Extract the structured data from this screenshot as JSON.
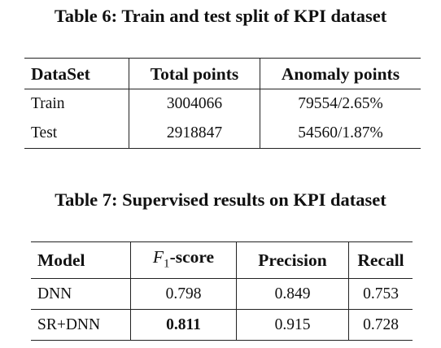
{
  "table6": {
    "caption": "Table 6: Train and test split of KPI dataset",
    "headers": [
      "DataSet",
      "Total points",
      "Anomaly points"
    ],
    "rows": [
      [
        "Train",
        "3004066",
        "79554/2.65%"
      ],
      [
        "Test",
        "2918847",
        "54560/1.87%"
      ]
    ]
  },
  "table7": {
    "caption": "Table 7: Supervised results on KPI dataset",
    "headers": {
      "model": "Model",
      "f1_symbol": "F",
      "f1_subscript": "1",
      "f1_suffix": "-score",
      "precision": "Precision",
      "recall": "Recall"
    },
    "rows": [
      [
        "DNN",
        "0.798",
        "0.849",
        "0.753"
      ],
      [
        "SR+DNN",
        "0.811",
        "0.915",
        "0.728"
      ]
    ],
    "bold_cells": [
      [
        1,
        1
      ]
    ]
  }
}
